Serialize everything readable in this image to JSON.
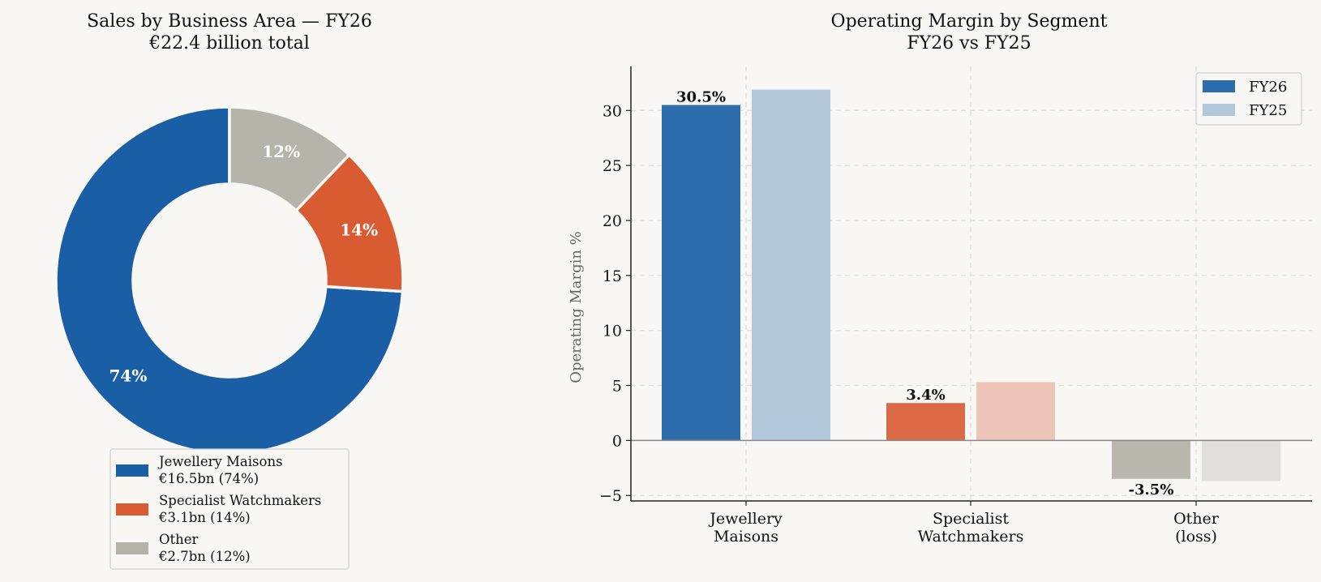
{
  "chart_data": [
    {
      "type": "pie",
      "title": "Sales by Business Area — FY26",
      "subtitle": "€22.4 billion total",
      "donut": true,
      "slices": [
        {
          "label": "Jewellery Maisons",
          "value": 16.5,
          "percent_label": "74%",
          "legend_line2": "€16.5bn (74%)",
          "color": "#1a5fa5"
        },
        {
          "label": "Specialist Watchmakers",
          "value": 3.1,
          "percent_label": "14%",
          "legend_line2": "€3.1bn (14%)",
          "color": "#d95b32"
        },
        {
          "label": "Other",
          "value": 2.7,
          "percent_label": "12%",
          "legend_line2": "€2.7bn (12%)",
          "color": "#b5b3aa"
        }
      ],
      "legend_position": "bottom"
    },
    {
      "type": "bar",
      "title": "Operating Margin by Segment",
      "subtitle": "FY26 vs FY25",
      "ylabel": "Operating Margin %",
      "ylim": [
        -5.5,
        34
      ],
      "yticks": [
        -5,
        0,
        5,
        10,
        15,
        20,
        25,
        30
      ],
      "ytick_labels": [
        "−5",
        "0",
        "5",
        "10",
        "15",
        "20",
        "25",
        "30"
      ],
      "categories": [
        {
          "line1": "Jewellery",
          "line2": "Maisons"
        },
        {
          "line1": "Specialist",
          "line2": "Watchmakers"
        },
        {
          "line1": "Other",
          "line2": "(loss)"
        }
      ],
      "series": [
        {
          "name": "FY26",
          "values": [
            30.5,
            3.4,
            -3.5
          ],
          "labels": [
            "30.5%",
            "3.4%",
            "-3.5%"
          ]
        },
        {
          "name": "FY25",
          "values": [
            31.9,
            5.3,
            -3.7
          ]
        }
      ],
      "bar_colors_fy26": [
        "#2e6dad",
        "#dc6945",
        "#b9b7ae"
      ],
      "bar_colors_fy25": [
        "#b3c7db",
        "#edc5b8",
        "#dcdbd7"
      ],
      "legend_colors": [
        "#2e6dad",
        "#b3c7db"
      ],
      "grid": true,
      "legend_position": "top-right"
    }
  ]
}
